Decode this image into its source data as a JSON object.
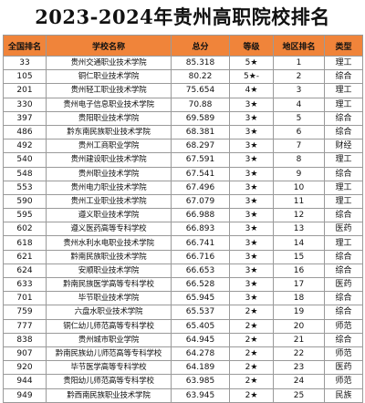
{
  "title": "2023-2024年贵州高职院校排名",
  "headers": [
    "全国排名",
    "学校名称",
    "总分",
    "等级",
    "地区排名",
    "类型"
  ],
  "rows": [
    [
      "33",
      "贵州交通职业技术学院",
      "85.318",
      "5★",
      "1",
      "理工"
    ],
    [
      "105",
      "铜仁职业技术学院",
      "80.22",
      "5★-",
      "2",
      "综合"
    ],
    [
      "201",
      "贵州轻工职业技术学院",
      "75.654",
      "4★",
      "3",
      "理工"
    ],
    [
      "330",
      "贵州电子信息职业技术学院",
      "70.88",
      "3★",
      "4",
      "理工"
    ],
    [
      "397",
      "贵阳职业技术学院",
      "69.589",
      "3★",
      "5",
      "综合"
    ],
    [
      "486",
      "黔东南民族职业技术学院",
      "68.381",
      "3★",
      "6",
      "综合"
    ],
    [
      "492",
      "贵州工商职业学院",
      "68.297",
      "3★",
      "7",
      "财经"
    ],
    [
      "540",
      "贵州建设职业技术学院",
      "67.591",
      "3★",
      "8",
      "理工"
    ],
    [
      "548",
      "贵州职业技术学院",
      "67.541",
      "3★",
      "9",
      "综合"
    ],
    [
      "553",
      "贵州电力职业技术学院",
      "67.496",
      "3★",
      "10",
      "理工"
    ],
    [
      "590",
      "贵州工业职业技术学院",
      "67.079",
      "3★",
      "11",
      "理工"
    ],
    [
      "595",
      "遵义职业技术学院",
      "66.988",
      "3★",
      "12",
      "综合"
    ],
    [
      "602",
      "遵义医药高等专科学校",
      "66.893",
      "3★",
      "13",
      "医药"
    ],
    [
      "618",
      "贵州水利水电职业技术学院",
      "66.741",
      "3★",
      "14",
      "理工"
    ],
    [
      "621",
      "黔南民族职业技术学院",
      "66.716",
      "3★",
      "15",
      "综合"
    ],
    [
      "624",
      "安顺职业技术学院",
      "66.653",
      "3★",
      "16",
      "综合"
    ],
    [
      "633",
      "黔南民族医学高等专科学校",
      "66.528",
      "3★",
      "17",
      "医药"
    ],
    [
      "701",
      "毕节职业技术学院",
      "65.945",
      "3★",
      "18",
      "综合"
    ],
    [
      "759",
      "六盘水职业技术学院",
      "65.537",
      "2★",
      "19",
      "综合"
    ],
    [
      "777",
      "铜仁幼儿师范高等专科学校",
      "65.405",
      "2★",
      "20",
      "师范"
    ],
    [
      "838",
      "贵州城市职业学院",
      "64.945",
      "2★",
      "21",
      "综合"
    ],
    [
      "907",
      "黔南民族幼儿师范高等专科学校",
      "64.278",
      "2★",
      "22",
      "师范"
    ],
    [
      "920",
      "毕节医学高等专科学校",
      "64.189",
      "2★",
      "23",
      "医药"
    ],
    [
      "944",
      "贵阳幼儿师范高等专科学校",
      "63.985",
      "2★",
      "24",
      "师范"
    ],
    [
      "949",
      "黔西南民族职业技术学院",
      "63.945",
      "2★",
      "25",
      "民族"
    ]
  ]
}
